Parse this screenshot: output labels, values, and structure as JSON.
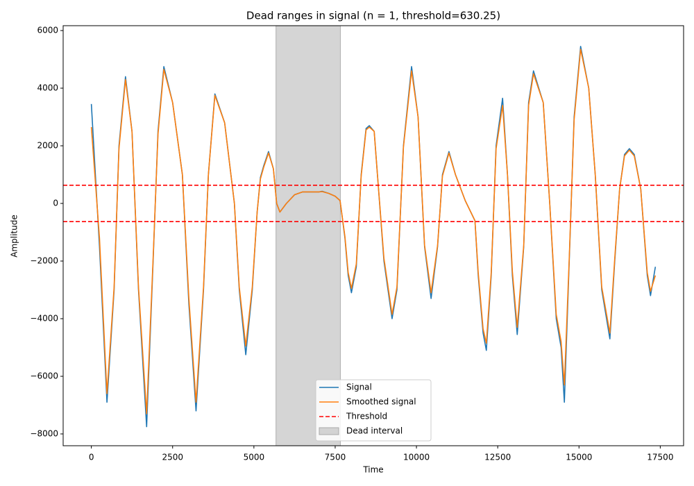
{
  "chart_data": {
    "type": "line",
    "title": "Dead ranges in signal (n = 1, threshold=630.25)",
    "x_label": "Time",
    "y_label": "Amplitude",
    "x": [
      0,
      250,
      480,
      700,
      850,
      1050,
      1250,
      1450,
      1700,
      1900,
      2050,
      2230,
      2500,
      2800,
      3000,
      3220,
      3450,
      3600,
      3800,
      4100,
      4400,
      4550,
      4750,
      4950,
      5100,
      5200,
      5300,
      5450,
      5600,
      5700,
      5800,
      6000,
      6250,
      6500,
      7000,
      7100,
      7300,
      7500,
      7650,
      7800,
      7900,
      8000,
      8150,
      8300,
      8450,
      8550,
      8700,
      8800,
      9000,
      9250,
      9400,
      9600,
      9850,
      10050,
      10250,
      10450,
      10650,
      10800,
      11000,
      11200,
      11500,
      11800,
      11900,
      12050,
      12150,
      12300,
      12450,
      12650,
      12800,
      12950,
      13100,
      13300,
      13450,
      13600,
      13900,
      14100,
      14300,
      14450,
      14550,
      14700,
      14850,
      15050,
      15300,
      15500,
      15700,
      15950,
      16100,
      16250,
      16400,
      16550,
      16700,
      16900,
      17100,
      17200,
      17350
    ],
    "series": [
      {
        "name": "Signal",
        "color": "#1f77b4",
        "values": [
          3450,
          -1500,
          -6900,
          -3000,
          2000,
          4400,
          2500,
          -3000,
          -7750,
          -2000,
          2500,
          4750,
          3500,
          1000,
          -3500,
          -7200,
          -3000,
          1000,
          3800,
          2800,
          0,
          -3000,
          -5250,
          -3000,
          -300,
          900,
          1300,
          1800,
          1200,
          0,
          -300,
          0,
          300,
          400,
          400,
          420,
          350,
          250,
          100,
          -1200,
          -2500,
          -3100,
          -2200,
          1000,
          2600,
          2700,
          2500,
          1000,
          -2000,
          -4000,
          -3000,
          2000,
          4750,
          3000,
          -1500,
          -3300,
          -1500,
          1000,
          1800,
          1000,
          100,
          -600,
          -2500,
          -4500,
          -5100,
          -2500,
          2000,
          3650,
          1000,
          -2500,
          -4550,
          -1500,
          3500,
          4600,
          3500,
          0,
          -4000,
          -5000,
          -6900,
          -2000,
          3000,
          5450,
          4000,
          1000,
          -3000,
          -4700,
          -2000,
          500,
          1700,
          1900,
          1700,
          500,
          -2500,
          -3200,
          -2200
        ]
      },
      {
        "name": "Smoothed signal",
        "color": "#ff7f0e",
        "values": [
          2650,
          -1200,
          -6600,
          -2900,
          1900,
          4300,
          2500,
          -2900,
          -7300,
          -1900,
          2400,
          4650,
          3500,
          1000,
          -3300,
          -6900,
          -2900,
          1000,
          3750,
          2800,
          0,
          -2900,
          -4950,
          -2900,
          -300,
          850,
          1250,
          1750,
          1200,
          0,
          -300,
          0,
          300,
          400,
          400,
          410,
          350,
          250,
          100,
          -1150,
          -2400,
          -2950,
          -2100,
          950,
          2550,
          2650,
          2500,
          1000,
          -1900,
          -3850,
          -2900,
          1950,
          4600,
          3000,
          -1450,
          -3100,
          -1450,
          950,
          1750,
          1000,
          100,
          -600,
          -2400,
          -4350,
          -4850,
          -2400,
          1900,
          3400,
          1000,
          -2350,
          -4300,
          -1450,
          3400,
          4500,
          3500,
          0,
          -3850,
          -4800,
          -6300,
          -1900,
          2900,
          5350,
          4000,
          1000,
          -2900,
          -4500,
          -1900,
          500,
          1650,
          1850,
          1650,
          500,
          -2400,
          -3050,
          -2500
        ]
      }
    ],
    "hlines": {
      "name": "Threshold",
      "color": "#ff0000",
      "values": [
        630.25,
        -630.25
      ]
    },
    "spans": {
      "name": "Dead interval",
      "color": "#d3d3d3",
      "ranges": [
        [
          5680,
          7660
        ]
      ]
    },
    "xlim": [
      -867.5,
      18217.5
    ],
    "ylim": [
      -8410,
      6169
    ],
    "xticks": [
      0,
      2500,
      5000,
      7500,
      10000,
      12500,
      15000,
      17500
    ],
    "yticks": [
      {
        "value": -8000,
        "label": "−8000"
      },
      {
        "value": -6000,
        "label": "−6000"
      },
      {
        "value": -4000,
        "label": "−4000"
      },
      {
        "value": -2000,
        "label": "−2000"
      },
      0,
      2000,
      4000,
      6000
    ],
    "legend": "lower center"
  }
}
